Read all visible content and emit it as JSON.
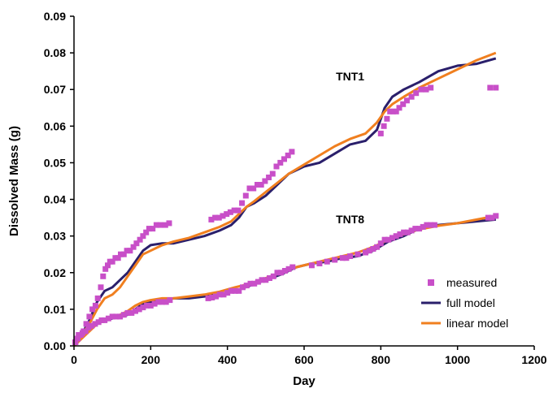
{
  "colors": {
    "measured": "#c84fc8",
    "full_model": "#2a1f6b",
    "linear_model": "#f07f1f",
    "axis": "#000000"
  },
  "chart_data": {
    "type": "scatter",
    "xlabel": "Day",
    "ylabel": "Dissolved Mass (g)",
    "xlim": [
      0,
      1200
    ],
    "ylim": [
      0,
      0.09
    ],
    "xticks": [
      0,
      200,
      400,
      600,
      800,
      1000,
      1200
    ],
    "yticks": [
      "0.00",
      "0.01",
      "0.02",
      "0.03",
      "0.04",
      "0.05",
      "0.06",
      "0.07",
      "0.08",
      "0.09"
    ],
    "grid": false,
    "legend_position": "bottom-right",
    "annotations": [
      {
        "text": "TNT1",
        "x": 720,
        "y": 0.0725
      },
      {
        "text": "TNT8",
        "x": 720,
        "y": 0.0335
      }
    ],
    "series": [
      {
        "name": "measured",
        "kind": "markers",
        "points": [
          [
            3,
            0.001
          ],
          [
            8,
            0.002
          ],
          [
            12,
            0.003
          ],
          [
            18,
            0.003
          ],
          [
            25,
            0.004
          ],
          [
            32,
            0.006
          ],
          [
            40,
            0.008
          ],
          [
            48,
            0.01
          ],
          [
            56,
            0.011
          ],
          [
            62,
            0.013
          ],
          [
            70,
            0.016
          ],
          [
            76,
            0.019
          ],
          [
            82,
            0.021
          ],
          [
            88,
            0.022
          ],
          [
            94,
            0.023
          ],
          [
            100,
            0.023
          ],
          [
            108,
            0.024
          ],
          [
            115,
            0.024
          ],
          [
            122,
            0.025
          ],
          [
            130,
            0.025
          ],
          [
            138,
            0.026
          ],
          [
            146,
            0.026
          ],
          [
            155,
            0.027
          ],
          [
            163,
            0.028
          ],
          [
            172,
            0.029
          ],
          [
            180,
            0.03
          ],
          [
            188,
            0.031
          ],
          [
            196,
            0.032
          ],
          [
            205,
            0.032
          ],
          [
            215,
            0.033
          ],
          [
            225,
            0.033
          ],
          [
            238,
            0.033
          ],
          [
            248,
            0.0335
          ],
          [
            358,
            0.0345
          ],
          [
            368,
            0.035
          ],
          [
            378,
            0.035
          ],
          [
            388,
            0.0355
          ],
          [
            398,
            0.036
          ],
          [
            408,
            0.0365
          ],
          [
            418,
            0.037
          ],
          [
            428,
            0.037
          ],
          [
            438,
            0.039
          ],
          [
            448,
            0.041
          ],
          [
            458,
            0.043
          ],
          [
            468,
            0.043
          ],
          [
            478,
            0.044
          ],
          [
            488,
            0.044
          ],
          [
            498,
            0.045
          ],
          [
            508,
            0.046
          ],
          [
            518,
            0.047
          ],
          [
            528,
            0.049
          ],
          [
            538,
            0.05
          ],
          [
            548,
            0.051
          ],
          [
            558,
            0.052
          ],
          [
            568,
            0.053
          ],
          [
            800,
            0.058
          ],
          [
            808,
            0.06
          ],
          [
            816,
            0.062
          ],
          [
            824,
            0.064
          ],
          [
            832,
            0.064
          ],
          [
            840,
            0.064
          ],
          [
            848,
            0.065
          ],
          [
            858,
            0.066
          ],
          [
            868,
            0.067
          ],
          [
            880,
            0.068
          ],
          [
            892,
            0.069
          ],
          [
            905,
            0.07
          ],
          [
            918,
            0.07
          ],
          [
            930,
            0.0705
          ],
          [
            1085,
            0.0705
          ],
          [
            1100,
            0.0705
          ],
          [
            4,
            0.001
          ],
          [
            10,
            0.002
          ],
          [
            16,
            0.003
          ],
          [
            22,
            0.0035
          ],
          [
            30,
            0.004
          ],
          [
            38,
            0.005
          ],
          [
            46,
            0.0055
          ],
          [
            55,
            0.006
          ],
          [
            64,
            0.0065
          ],
          [
            72,
            0.007
          ],
          [
            80,
            0.007
          ],
          [
            90,
            0.0075
          ],
          [
            100,
            0.008
          ],
          [
            110,
            0.008
          ],
          [
            120,
            0.008
          ],
          [
            130,
            0.0085
          ],
          [
            140,
            0.009
          ],
          [
            150,
            0.009
          ],
          [
            160,
            0.0095
          ],
          [
            170,
            0.01
          ],
          [
            180,
            0.0105
          ],
          [
            190,
            0.011
          ],
          [
            200,
            0.011
          ],
          [
            210,
            0.0115
          ],
          [
            220,
            0.012
          ],
          [
            230,
            0.012
          ],
          [
            240,
            0.012
          ],
          [
            250,
            0.0125
          ],
          [
            350,
            0.013
          ],
          [
            360,
            0.0132
          ],
          [
            370,
            0.0135
          ],
          [
            380,
            0.014
          ],
          [
            390,
            0.014
          ],
          [
            400,
            0.0145
          ],
          [
            410,
            0.015
          ],
          [
            420,
            0.015
          ],
          [
            430,
            0.015
          ],
          [
            440,
            0.016
          ],
          [
            450,
            0.0165
          ],
          [
            460,
            0.017
          ],
          [
            470,
            0.017
          ],
          [
            480,
            0.0175
          ],
          [
            490,
            0.018
          ],
          [
            500,
            0.018
          ],
          [
            510,
            0.0185
          ],
          [
            520,
            0.019
          ],
          [
            530,
            0.02
          ],
          [
            540,
            0.02
          ],
          [
            550,
            0.0205
          ],
          [
            560,
            0.021
          ],
          [
            570,
            0.0215
          ],
          [
            620,
            0.022
          ],
          [
            640,
            0.0225
          ],
          [
            660,
            0.023
          ],
          [
            680,
            0.0235
          ],
          [
            700,
            0.024
          ],
          [
            710,
            0.024
          ],
          [
            720,
            0.0245
          ],
          [
            740,
            0.025
          ],
          [
            760,
            0.0255
          ],
          [
            770,
            0.026
          ],
          [
            780,
            0.0265
          ],
          [
            790,
            0.027
          ],
          [
            800,
            0.028
          ],
          [
            810,
            0.029
          ],
          [
            820,
            0.029
          ],
          [
            830,
            0.0295
          ],
          [
            840,
            0.03
          ],
          [
            850,
            0.0305
          ],
          [
            860,
            0.031
          ],
          [
            870,
            0.031
          ],
          [
            880,
            0.0315
          ],
          [
            890,
            0.032
          ],
          [
            900,
            0.032
          ],
          [
            910,
            0.0325
          ],
          [
            920,
            0.033
          ],
          [
            930,
            0.033
          ],
          [
            940,
            0.033
          ],
          [
            1080,
            0.035
          ],
          [
            1090,
            0.035
          ],
          [
            1100,
            0.0355
          ]
        ]
      },
      {
        "name": "full model",
        "kind": "line",
        "lines": [
          [
            [
              0,
              0
            ],
            [
              20,
              0.003
            ],
            [
              40,
              0.007
            ],
            [
              60,
              0.012
            ],
            [
              80,
              0.015
            ],
            [
              100,
              0.016
            ],
            [
              120,
              0.018
            ],
            [
              140,
              0.02
            ],
            [
              160,
              0.023
            ],
            [
              180,
              0.026
            ],
            [
              200,
              0.0275
            ],
            [
              230,
              0.028
            ],
            [
              260,
              0.028
            ],
            [
              300,
              0.029
            ],
            [
              340,
              0.03
            ],
            [
              380,
              0.0315
            ],
            [
              410,
              0.033
            ],
            [
              430,
              0.035
            ],
            [
              450,
              0.038
            ],
            [
              470,
              0.039
            ],
            [
              500,
              0.041
            ],
            [
              530,
              0.044
            ],
            [
              560,
              0.047
            ],
            [
              600,
              0.049
            ],
            [
              640,
              0.05
            ],
            [
              680,
              0.0525
            ],
            [
              720,
              0.055
            ],
            [
              760,
              0.056
            ],
            [
              790,
              0.059
            ],
            [
              810,
              0.065
            ],
            [
              830,
              0.068
            ],
            [
              860,
              0.07
            ],
            [
              900,
              0.072
            ],
            [
              950,
              0.075
            ],
            [
              1000,
              0.0765
            ],
            [
              1050,
              0.077
            ],
            [
              1100,
              0.0785
            ]
          ],
          [
            [
              0,
              0
            ],
            [
              20,
              0.003
            ],
            [
              40,
              0.005
            ],
            [
              60,
              0.006
            ],
            [
              80,
              0.007
            ],
            [
              100,
              0.0075
            ],
            [
              120,
              0.008
            ],
            [
              140,
              0.0085
            ],
            [
              160,
              0.01
            ],
            [
              180,
              0.0115
            ],
            [
              200,
              0.012
            ],
            [
              230,
              0.0125
            ],
            [
              260,
              0.013
            ],
            [
              300,
              0.013
            ],
            [
              340,
              0.0135
            ],
            [
              380,
              0.014
            ],
            [
              420,
              0.015
            ],
            [
              460,
              0.0165
            ],
            [
              500,
              0.018
            ],
            [
              540,
              0.0195
            ],
            [
              580,
              0.0215
            ],
            [
              620,
              0.0225
            ],
            [
              660,
              0.023
            ],
            [
              700,
              0.024
            ],
            [
              740,
              0.0245
            ],
            [
              780,
              0.026
            ],
            [
              820,
              0.0285
            ],
            [
              860,
              0.03
            ],
            [
              900,
              0.032
            ],
            [
              950,
              0.033
            ],
            [
              1000,
              0.0335
            ],
            [
              1050,
              0.034
            ],
            [
              1100,
              0.0345
            ]
          ]
        ]
      },
      {
        "name": "linear model",
        "kind": "line",
        "lines": [
          [
            [
              0,
              0
            ],
            [
              20,
              0.003
            ],
            [
              40,
              0.006
            ],
            [
              60,
              0.01
            ],
            [
              80,
              0.013
            ],
            [
              100,
              0.014
            ],
            [
              120,
              0.016
            ],
            [
              140,
              0.019
            ],
            [
              160,
              0.022
            ],
            [
              180,
              0.025
            ],
            [
              200,
              0.026
            ],
            [
              230,
              0.0275
            ],
            [
              260,
              0.0285
            ],
            [
              300,
              0.0295
            ],
            [
              340,
              0.031
            ],
            [
              380,
              0.0325
            ],
            [
              410,
              0.034
            ],
            [
              430,
              0.036
            ],
            [
              450,
              0.038
            ],
            [
              470,
              0.0395
            ],
            [
              500,
              0.042
            ],
            [
              530,
              0.0445
            ],
            [
              560,
              0.047
            ],
            [
              600,
              0.0495
            ],
            [
              640,
              0.052
            ],
            [
              680,
              0.0545
            ],
            [
              720,
              0.0565
            ],
            [
              760,
              0.058
            ],
            [
              790,
              0.061
            ],
            [
              810,
              0.064
            ],
            [
              830,
              0.066
            ],
            [
              860,
              0.068
            ],
            [
              900,
              0.0705
            ],
            [
              950,
              0.073
            ],
            [
              1000,
              0.0755
            ],
            [
              1050,
              0.078
            ],
            [
              1100,
              0.08
            ]
          ],
          [
            [
              0,
              0
            ],
            [
              20,
              0.002
            ],
            [
              40,
              0.004
            ],
            [
              60,
              0.006
            ],
            [
              80,
              0.007
            ],
            [
              100,
              0.008
            ],
            [
              120,
              0.0085
            ],
            [
              140,
              0.0095
            ],
            [
              160,
              0.011
            ],
            [
              180,
              0.012
            ],
            [
              200,
              0.0125
            ],
            [
              230,
              0.013
            ],
            [
              260,
              0.013
            ],
            [
              300,
              0.0135
            ],
            [
              340,
              0.014
            ],
            [
              380,
              0.0148
            ],
            [
              420,
              0.016
            ],
            [
              460,
              0.017
            ],
            [
              500,
              0.0185
            ],
            [
              540,
              0.02
            ],
            [
              580,
              0.0215
            ],
            [
              620,
              0.0225
            ],
            [
              660,
              0.0235
            ],
            [
              700,
              0.0245
            ],
            [
              740,
              0.0255
            ],
            [
              780,
              0.027
            ],
            [
              820,
              0.029
            ],
            [
              860,
              0.0305
            ],
            [
              900,
              0.0318
            ],
            [
              950,
              0.0328
            ],
            [
              1000,
              0.0335
            ],
            [
              1050,
              0.0345
            ],
            [
              1100,
              0.0355
            ]
          ]
        ]
      }
    ]
  }
}
